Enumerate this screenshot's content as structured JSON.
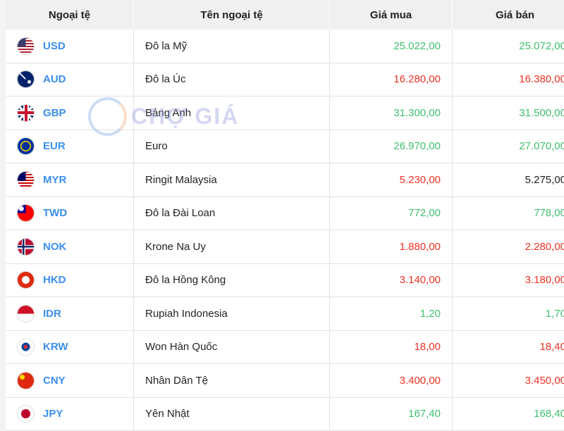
{
  "headers": [
    "Ngoại tệ",
    "Tên ngoại tệ",
    "Giá mua",
    "Giá bán"
  ],
  "watermark": "CHỢ GIÁ",
  "colors": {
    "up": "#3fbf6f",
    "down": "#ee3124",
    "neutral": "#222222",
    "code": "#3b8fef"
  },
  "rows": [
    {
      "code": "USD",
      "name": "Đô la Mỹ",
      "buy": "25.022,00",
      "sell": "25.072,00",
      "buy_color": "green",
      "sell_color": "green",
      "flag": "us-flag-icon"
    },
    {
      "code": "AUD",
      "name": "Đô la Úc",
      "buy": "16.280,00",
      "sell": "16.380,00",
      "buy_color": "red",
      "sell_color": "red",
      "flag": "au-flag-icon"
    },
    {
      "code": "GBP",
      "name": "Bảng Anh",
      "buy": "31.300,00",
      "sell": "31.500,00",
      "buy_color": "green",
      "sell_color": "green",
      "flag": "gb-flag-icon"
    },
    {
      "code": "EUR",
      "name": "Euro",
      "buy": "26.970,00",
      "sell": "27.070,00",
      "buy_color": "green",
      "sell_color": "green",
      "flag": "eu-flag-icon"
    },
    {
      "code": "MYR",
      "name": "Ringit Malaysia",
      "buy": "5.230,00",
      "sell": "5.275,00",
      "buy_color": "red",
      "sell_color": "black",
      "flag": "my-flag-icon"
    },
    {
      "code": "TWD",
      "name": "Đô la Đài Loan",
      "buy": "772,00",
      "sell": "778,00",
      "buy_color": "green",
      "sell_color": "green",
      "flag": "tw-flag-icon"
    },
    {
      "code": "NOK",
      "name": "Krone Na Uy",
      "buy": "1.880,00",
      "sell": "2.280,00",
      "buy_color": "red",
      "sell_color": "red",
      "flag": "no-flag-icon"
    },
    {
      "code": "HKD",
      "name": "Đô la Hồng Kông",
      "buy": "3.140,00",
      "sell": "3.180,00",
      "buy_color": "red",
      "sell_color": "red",
      "flag": "hk-flag-icon"
    },
    {
      "code": "IDR",
      "name": "Rupiah Indonesia",
      "buy": "1,20",
      "sell": "1,70",
      "buy_color": "green",
      "sell_color": "green",
      "flag": "id-flag-icon"
    },
    {
      "code": "KRW",
      "name": "Won Hàn Quốc",
      "buy": "18,00",
      "sell": "18,40",
      "buy_color": "red",
      "sell_color": "red",
      "flag": "kr-flag-icon"
    },
    {
      "code": "CNY",
      "name": "Nhân Dân Tệ",
      "buy": "3.400,00",
      "sell": "3.450,00",
      "buy_color": "red",
      "sell_color": "red",
      "flag": "cn-flag-icon"
    },
    {
      "code": "JPY",
      "name": "Yên Nhật",
      "buy": "167,40",
      "sell": "168,40",
      "buy_color": "green",
      "sell_color": "green",
      "flag": "jp-flag-icon"
    }
  ]
}
